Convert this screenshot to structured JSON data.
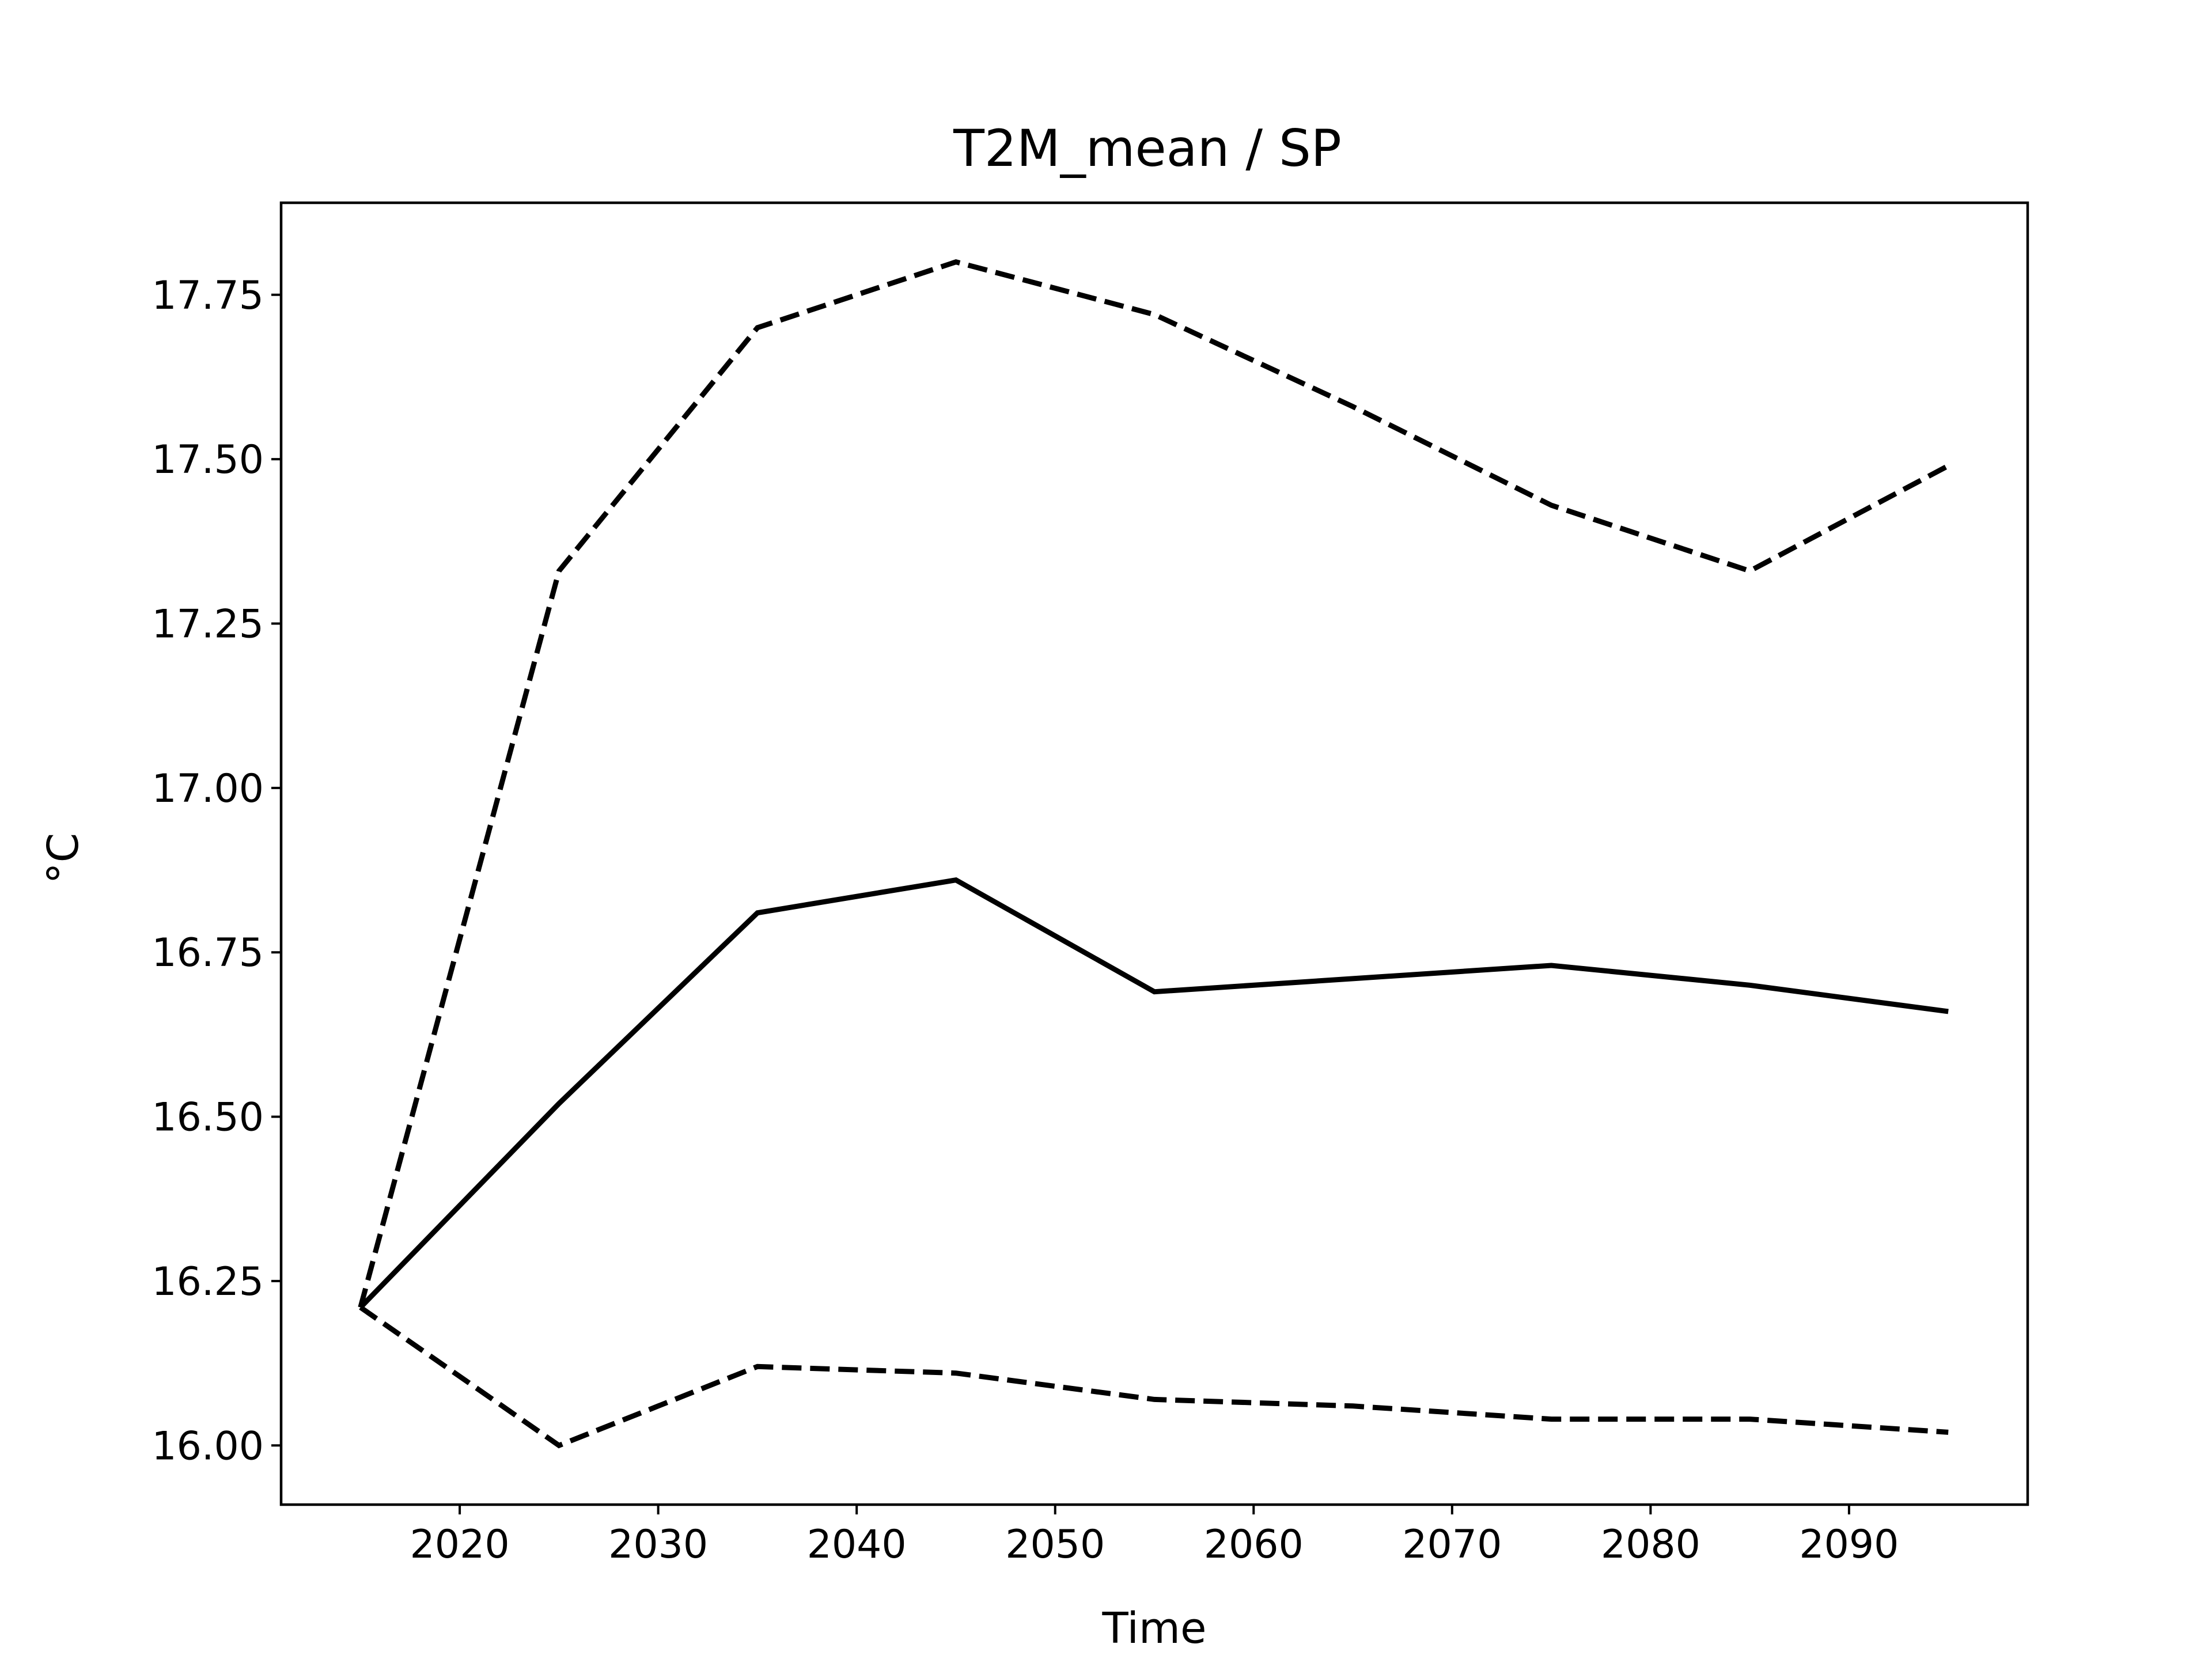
{
  "chart_data": {
    "type": "line",
    "title": "T2M_mean / SP",
    "xlabel": "Time",
    "ylabel": "°C",
    "x": [
      2015,
      2025,
      2035,
      2045,
      2055,
      2065,
      2075,
      2085,
      2095
    ],
    "series": [
      {
        "style": "solid",
        "color": "#000000",
        "values": [
          16.21,
          16.52,
          16.81,
          16.86,
          16.69,
          16.71,
          16.73,
          16.7,
          16.66
        ]
      },
      {
        "style": "dashed",
        "color": "#000000",
        "values": [
          16.21,
          17.33,
          17.7,
          17.8,
          17.72,
          17.58,
          17.43,
          17.33,
          17.49
        ]
      },
      {
        "style": "dashed",
        "color": "#000000",
        "values": [
          16.21,
          16.0,
          16.12,
          16.11,
          16.07,
          16.06,
          16.04,
          16.04,
          16.02
        ]
      }
    ],
    "xlim": [
      2011,
      2099
    ],
    "ylim": [
      15.91,
      17.89
    ],
    "xticks": [
      2020,
      2030,
      2040,
      2050,
      2060,
      2070,
      2080,
      2090
    ],
    "xtick_labels": [
      "2020",
      "2030",
      "2040",
      "2050",
      "2060",
      "2070",
      "2080",
      "2090"
    ],
    "yticks": [
      16.0,
      16.25,
      16.5,
      16.75,
      17.0,
      17.25,
      17.5,
      17.75
    ],
    "ytick_labels": [
      "16.00",
      "16.25",
      "16.50",
      "16.75",
      "17.00",
      "17.25",
      "17.50",
      "17.75"
    ],
    "grid": false,
    "legend": false
  }
}
